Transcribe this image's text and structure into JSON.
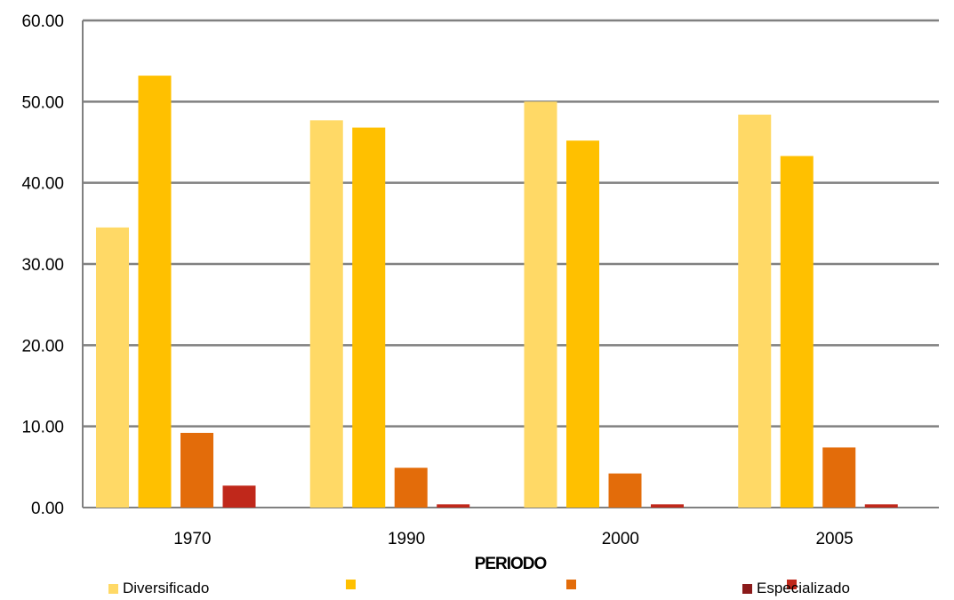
{
  "chart_data": {
    "type": "bar",
    "xlabel": "PERIODO",
    "ylabel": "",
    "ylim": [
      0,
      60
    ],
    "yticks": [
      "0.00",
      "10.00",
      "20.00",
      "30.00",
      "40.00",
      "50.00",
      "60.00"
    ],
    "grid": true,
    "legend_position": "bottom",
    "categories": [
      "1970",
      "1990",
      "2000",
      "2005"
    ],
    "series": [
      {
        "name": "Diversificado",
        "color": "#FFD966",
        "values": [
          34.5,
          47.7,
          50.0,
          48.4
        ]
      },
      {
        "name": "",
        "color": "#FFC000",
        "values": [
          53.2,
          46.8,
          45.2,
          43.3
        ]
      },
      {
        "name": "",
        "color": "#E36C0A",
        "values": [
          9.2,
          4.9,
          4.2,
          7.4
        ]
      },
      {
        "name": "",
        "color": "#C0281B",
        "values": [
          2.7,
          0.4,
          0.4,
          0.4
        ]
      },
      {
        "name": "Especializado",
        "color": "#8B1A1A",
        "values": [
          null,
          null,
          null,
          null
        ]
      }
    ]
  }
}
